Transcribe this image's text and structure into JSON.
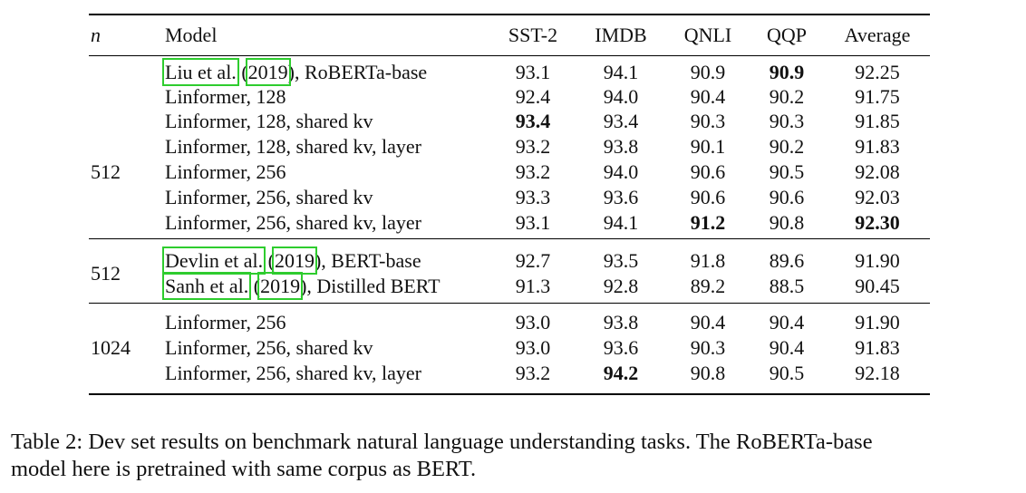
{
  "table": {
    "header": [
      "n",
      "Model",
      "SST-2",
      "IMDB",
      "QNLI",
      "QQP",
      "Average"
    ],
    "groups": [
      {
        "n": "512",
        "rows": [
          {
            "model": {
              "author": "Liu et al.",
              "open": " (",
              "year": "2019",
              "close": "), RoBERTa-base"
            },
            "values": [
              "93.1",
              "94.1",
              "90.9",
              "90.9",
              "92.25"
            ],
            "bold": [
              3
            ]
          },
          {
            "model": {
              "text": "Linformer, 128"
            },
            "values": [
              "92.4",
              "94.0",
              "90.4",
              "90.2",
              "91.75"
            ],
            "bold": []
          },
          {
            "model": {
              "text": "Linformer, 128, shared kv"
            },
            "values": [
              "93.4",
              "93.4",
              "90.3",
              "90.3",
              "91.85"
            ],
            "bold": [
              0
            ]
          },
          {
            "model": {
              "text": "Linformer, 128, shared kv, layer"
            },
            "values": [
              "93.2",
              "93.8",
              "90.1",
              "90.2",
              "91.83"
            ],
            "bold": []
          },
          {
            "model": {
              "text": "Linformer, 256"
            },
            "values": [
              "93.2",
              "94.0",
              "90.6",
              "90.5",
              "92.08"
            ],
            "bold": []
          },
          {
            "model": {
              "text": "Linformer, 256, shared kv"
            },
            "values": [
              "93.3",
              "93.6",
              "90.6",
              "90.6",
              "92.03"
            ],
            "bold": []
          },
          {
            "model": {
              "text": "Linformer, 256, shared kv, layer"
            },
            "values": [
              "93.1",
              "94.1",
              "91.2",
              "90.8",
              "92.30"
            ],
            "bold": [
              2,
              4
            ]
          }
        ]
      },
      {
        "n": "512",
        "rows": [
          {
            "model": {
              "author": "Devlin et al.",
              "open": " (",
              "year": "2019",
              "close": "), BERT-base"
            },
            "values": [
              "92.7",
              "93.5",
              "91.8",
              "89.6",
              "91.90"
            ],
            "bold": []
          },
          {
            "model": {
              "author": "Sanh et al.",
              "open": " (",
              "year": "2019",
              "close": "), Distilled BERT"
            },
            "values": [
              "91.3",
              "92.8",
              "89.2",
              "88.5",
              "90.45"
            ],
            "bold": []
          }
        ]
      },
      {
        "n": "1024",
        "rows": [
          {
            "model": {
              "text": "Linformer, 256"
            },
            "values": [
              "93.0",
              "93.8",
              "90.4",
              "90.4",
              "91.90"
            ],
            "bold": []
          },
          {
            "model": {
              "text": "Linformer, 256, shared kv"
            },
            "values": [
              "93.0",
              "93.6",
              "90.3",
              "90.4",
              "91.83"
            ],
            "bold": []
          },
          {
            "model": {
              "text": "Linformer, 256, shared kv, layer"
            },
            "values": [
              "93.2",
              "94.2",
              "90.8",
              "90.5",
              "92.18"
            ],
            "bold": [
              1
            ]
          }
        ]
      }
    ]
  },
  "caption": [
    "Table 2: Dev set results on benchmark natural language understanding tasks. The RoBERTa-base",
    "model here is pretrained with same corpus as BERT."
  ]
}
